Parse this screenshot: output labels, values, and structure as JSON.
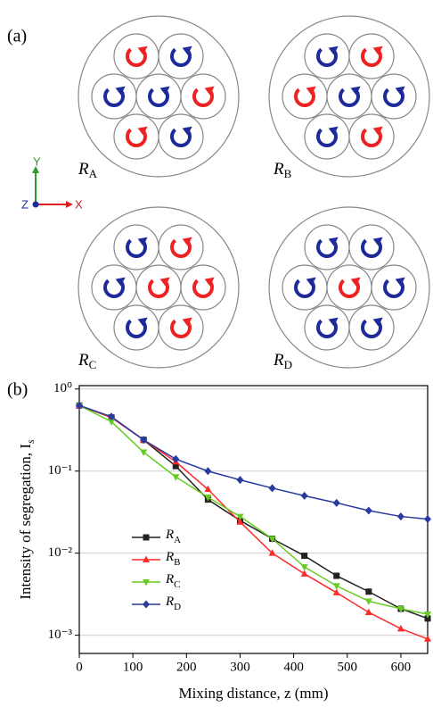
{
  "panel_a": {
    "label": "(a)",
    "mixers": [
      "RA",
      "RB",
      "RC",
      "RD"
    ],
    "axes": {
      "y": "Y",
      "z": "Z",
      "x": "X"
    }
  },
  "chart_data": {
    "type": "line",
    "panel_label": "(b)",
    "x_label": "Mixing distance, z (mm)",
    "y_label": "Intensity of segregation, Is",
    "x": [
      0,
      60,
      120,
      180,
      240,
      300,
      360,
      420,
      480,
      540,
      600,
      650
    ],
    "series": [
      {
        "name": "RA",
        "color": "#222222",
        "marker": "square",
        "values": [
          0.63,
          0.45,
          0.24,
          0.115,
          0.045,
          0.025,
          0.015,
          0.0093,
          0.0053,
          0.0034,
          0.0021,
          0.0016
        ]
      },
      {
        "name": "RB",
        "color": "#ff2a2a",
        "marker": "triangle-up",
        "values": [
          0.63,
          0.45,
          0.24,
          0.13,
          0.06,
          0.024,
          0.01,
          0.0056,
          0.0033,
          0.0019,
          0.0012,
          0.0009
        ]
      },
      {
        "name": "RC",
        "color": "#66cc22",
        "marker": "triangle-down",
        "values": [
          0.63,
          0.4,
          0.17,
          0.085,
          0.048,
          0.028,
          0.015,
          0.0068,
          0.004,
          0.0026,
          0.0021,
          0.0018
        ]
      },
      {
        "name": "RD",
        "color": "#2a3aa0",
        "marker": "diamond",
        "values": [
          0.63,
          0.46,
          0.24,
          0.14,
          0.1,
          0.078,
          0.062,
          0.05,
          0.041,
          0.033,
          0.028,
          0.026
        ]
      }
    ],
    "xlim": [
      0,
      650
    ],
    "xticks": [
      0,
      100,
      200,
      300,
      400,
      500,
      600
    ],
    "ylim": [
      0.0006,
      1.1
    ],
    "log_y": true,
    "yticks": [
      {
        "value": 1,
        "label": "10⁰"
      },
      {
        "value": 0.1,
        "label": "10⁻¹"
      },
      {
        "value": 0.01,
        "label": "10⁻²"
      },
      {
        "value": 0.001,
        "label": "10⁻³"
      }
    ],
    "grid": true,
    "legend": "left"
  }
}
